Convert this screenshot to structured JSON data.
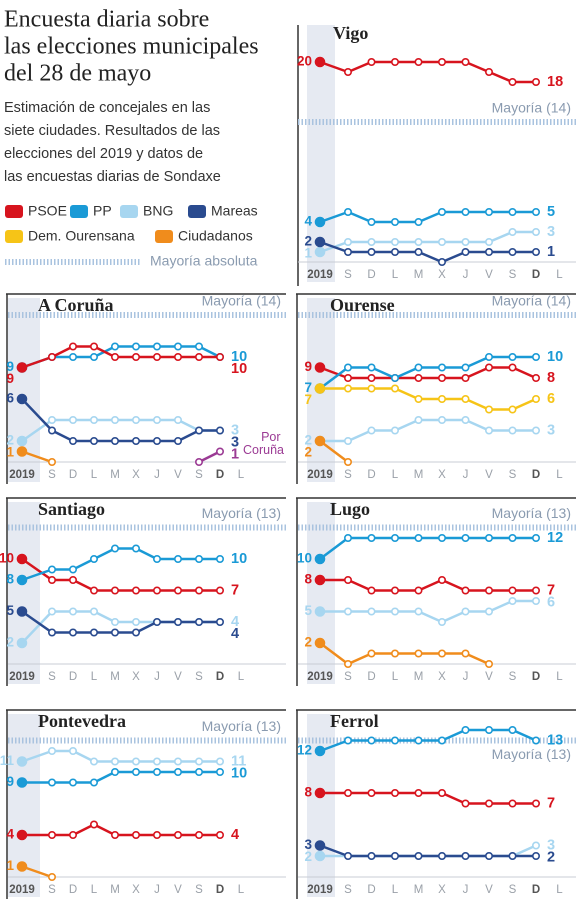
{
  "header": {
    "title_lines": [
      "Encuesta diaria sobre",
      "las elecciones municipales",
      "del 28 de mayo"
    ],
    "subtitle_lines": [
      "Estimación de concejales en las",
      "siete ciudades. Resultados de las",
      "elecciones del 2019 y datos de",
      "las encuestas diarias de Sondaxe"
    ],
    "legend": [
      {
        "name": "PSOE",
        "color": "#d7141e"
      },
      {
        "name": "PP",
        "color": "#1a9ad6"
      },
      {
        "name": "BNG",
        "color": "#a7d6f0"
      },
      {
        "name": "Mareas",
        "color": "#2a4b8f"
      },
      {
        "name": "Dem. Ourensana",
        "color": "#f6c417"
      },
      {
        "name": "Ciudadanos",
        "color": "#f08c1c"
      }
    ],
    "majority_legend": "Mayoría absoluta"
  },
  "chart_data": [
    {
      "type": "line",
      "title": "Vigo",
      "categories": [
        "2019",
        "S",
        "D",
        "L",
        "M",
        "X",
        "J",
        "V",
        "S",
        "D",
        "L"
      ],
      "ylim": [
        0,
        21
      ],
      "majority": {
        "value": 14,
        "label": "Mayoría (14)"
      },
      "series": [
        {
          "color": "#d7141e",
          "values": [
            20,
            19,
            20,
            20,
            20,
            20,
            20,
            19,
            18,
            18,
            null
          ]
        },
        {
          "color": "#1a9ad6",
          "values": [
            4,
            5,
            4,
            4,
            4,
            5,
            5,
            5,
            5,
            5,
            null
          ]
        },
        {
          "color": "#a7d6f0",
          "values": [
            1,
            2,
            2,
            2,
            2,
            2,
            2,
            2,
            3,
            3,
            null
          ]
        },
        {
          "color": "#2a4b8f",
          "values": [
            2,
            1,
            1,
            1,
            1,
            0,
            1,
            1,
            1,
            1,
            null
          ]
        }
      ]
    },
    {
      "type": "line",
      "title": "A Coruña",
      "categories": [
        "2019",
        "S",
        "D",
        "L",
        "M",
        "X",
        "J",
        "V",
        "S",
        "D",
        "L"
      ],
      "ylim": [
        0,
        15
      ],
      "majority": {
        "value": 14,
        "label": "Mayoría (14)"
      },
      "series": [
        {
          "color": "#1a9ad6",
          "values": [
            9,
            10,
            10,
            10,
            11,
            11,
            11,
            11,
            11,
            10,
            null
          ]
        },
        {
          "color": "#d7141e",
          "values": [
            9,
            10,
            11,
            11,
            10,
            10,
            10,
            10,
            10,
            10,
            null
          ]
        },
        {
          "color": "#a7d6f0",
          "values": [
            2,
            4,
            4,
            4,
            4,
            4,
            4,
            4,
            3,
            3,
            null
          ]
        },
        {
          "color": "#2a4b8f",
          "values": [
            6,
            3,
            2,
            2,
            2,
            2,
            2,
            2,
            3,
            3,
            null
          ]
        },
        {
          "color": "#f08c1c",
          "values": [
            1,
            0,
            null,
            null,
            null,
            null,
            null,
            null,
            null,
            null,
            null
          ]
        },
        {
          "name": "Por Coruña",
          "color": "#9b3b94",
          "values": [
            null,
            null,
            null,
            null,
            null,
            null,
            null,
            null,
            0,
            1,
            null
          ]
        }
      ]
    },
    {
      "type": "line",
      "title": "Ourense",
      "categories": [
        "2019",
        "S",
        "D",
        "L",
        "M",
        "X",
        "J",
        "V",
        "S",
        "D",
        "L"
      ],
      "ylim": [
        0,
        15
      ],
      "majority": {
        "value": 14,
        "label": "Mayoría (14)"
      },
      "series": [
        {
          "color": "#d7141e",
          "values": [
            9,
            8,
            8,
            8,
            8,
            8,
            8,
            9,
            9,
            8,
            null
          ]
        },
        {
          "color": "#1a9ad6",
          "values": [
            7,
            9,
            9,
            8,
            9,
            9,
            9,
            10,
            10,
            10,
            null
          ]
        },
        {
          "color": "#f6c417",
          "values": [
            7,
            7,
            7,
            7,
            6,
            6,
            6,
            5,
            5,
            6,
            null
          ]
        },
        {
          "color": "#a7d6f0",
          "values": [
            2,
            2,
            3,
            3,
            4,
            4,
            4,
            3,
            3,
            3,
            null
          ]
        },
        {
          "color": "#f08c1c",
          "values": [
            2,
            0,
            null,
            null,
            null,
            null,
            null,
            null,
            null,
            null,
            null
          ]
        }
      ]
    },
    {
      "type": "line",
      "title": "Santiago",
      "categories": [
        "2019",
        "S",
        "D",
        "L",
        "M",
        "X",
        "J",
        "V",
        "S",
        "D",
        "L"
      ],
      "ylim": [
        0,
        15
      ],
      "majority": {
        "value": 13,
        "label": "Mayoría (13)"
      },
      "series": [
        {
          "color": "#d7141e",
          "values": [
            10,
            8,
            8,
            7,
            7,
            7,
            7,
            7,
            7,
            7,
            null
          ]
        },
        {
          "color": "#1a9ad6",
          "values": [
            8,
            9,
            9,
            10,
            11,
            11,
            10,
            10,
            10,
            10,
            null
          ]
        },
        {
          "color": "#a7d6f0",
          "values": [
            2,
            5,
            5,
            5,
            4,
            4,
            4,
            4,
            4,
            4,
            null
          ]
        },
        {
          "color": "#2a4b8f",
          "values": [
            5,
            3,
            3,
            3,
            3,
            3,
            4,
            4,
            4,
            4,
            null
          ]
        }
      ]
    },
    {
      "type": "line",
      "title": "Lugo",
      "categories": [
        "2019",
        "S",
        "D",
        "L",
        "M",
        "X",
        "J",
        "V",
        "S",
        "D",
        "L"
      ],
      "ylim": [
        0,
        15
      ],
      "majority": {
        "value": 13,
        "label": "Mayoría (13)"
      },
      "series": [
        {
          "color": "#1a9ad6",
          "values": [
            10,
            12,
            12,
            12,
            12,
            12,
            12,
            12,
            12,
            12,
            null
          ]
        },
        {
          "color": "#d7141e",
          "values": [
            8,
            8,
            7,
            7,
            7,
            8,
            7,
            7,
            7,
            7,
            null
          ]
        },
        {
          "color": "#a7d6f0",
          "values": [
            5,
            5,
            5,
            5,
            5,
            4,
            5,
            5,
            6,
            6,
            null
          ]
        },
        {
          "color": "#f08c1c",
          "values": [
            2,
            0,
            1,
            1,
            1,
            1,
            1,
            0,
            null,
            null,
            null
          ]
        }
      ]
    },
    {
      "type": "line",
      "title": "Pontevedra",
      "categories": [
        "2019",
        "S",
        "D",
        "L",
        "M",
        "X",
        "J",
        "V",
        "S",
        "D",
        "L"
      ],
      "ylim": [
        0,
        15
      ],
      "majority": {
        "value": 13,
        "label": "Mayoría (13)"
      },
      "series": [
        {
          "color": "#a7d6f0",
          "values": [
            11,
            12,
            12,
            11,
            11,
            11,
            11,
            11,
            11,
            11,
            null
          ]
        },
        {
          "color": "#1a9ad6",
          "values": [
            9,
            9,
            9,
            9,
            10,
            10,
            10,
            10,
            10,
            10,
            null
          ]
        },
        {
          "color": "#d7141e",
          "values": [
            4,
            4,
            4,
            5,
            4,
            4,
            4,
            4,
            4,
            4,
            null
          ]
        },
        {
          "color": "#f08c1c",
          "values": [
            1,
            0,
            null,
            null,
            null,
            null,
            null,
            null,
            null,
            null,
            null
          ]
        }
      ]
    },
    {
      "type": "line",
      "title": "Ferrol",
      "categories": [
        "2019",
        "S",
        "D",
        "L",
        "M",
        "X",
        "J",
        "V",
        "S",
        "D",
        "L"
      ],
      "ylim": [
        0,
        15
      ],
      "majority": {
        "value": 13,
        "label": "Mayoría (13)"
      },
      "series": [
        {
          "color": "#1a9ad6",
          "values": [
            12,
            13,
            13,
            13,
            13,
            13,
            14,
            14,
            14,
            13,
            null
          ]
        },
        {
          "color": "#d7141e",
          "values": [
            8,
            8,
            8,
            8,
            8,
            8,
            7,
            7,
            7,
            7,
            null
          ]
        },
        {
          "color": "#a7d6f0",
          "values": [
            2,
            2,
            2,
            2,
            2,
            2,
            2,
            2,
            2,
            3,
            null
          ]
        },
        {
          "color": "#2a4b8f",
          "values": [
            3,
            2,
            2,
            2,
            2,
            2,
            2,
            2,
            2,
            2,
            null
          ]
        }
      ]
    }
  ]
}
